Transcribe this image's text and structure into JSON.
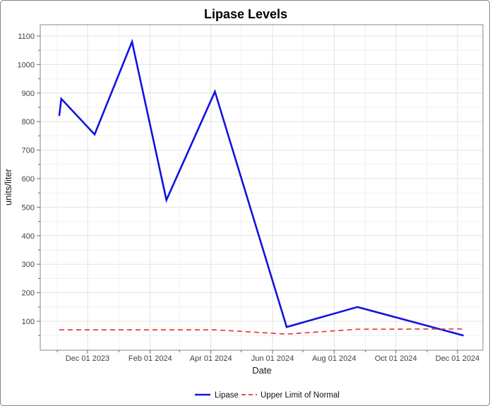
{
  "figure": {
    "background_color": "#ffffff",
    "border_color": "#858585",
    "panel_border_color": "#9b9b9b",
    "grid_major_color": "#e2e2e2",
    "grid_minor_color": "#f0f0f0"
  },
  "chart_data": {
    "type": "line",
    "title": "Lipase Levels",
    "xlabel": "Date",
    "ylabel": "units/liter",
    "grid": true,
    "legend_position": "bottom-center",
    "x_axis": {
      "tick_labels": [
        "Dec 01 2023",
        "Feb 01 2024",
        "Apr 01 2024",
        "Jun 01 2024",
        "Aug 01 2024",
        "Oct 01 2024",
        "Dec 01 2024"
      ],
      "tick_dates": [
        "2023-12-01",
        "2024-02-01",
        "2024-04-01",
        "2024-06-01",
        "2024-08-01",
        "2024-10-01",
        "2024-12-01"
      ],
      "range_dates": [
        "2023-10-15",
        "2024-12-26"
      ],
      "minor_gridlines": "monthly"
    },
    "y_axis": {
      "ticks": [
        100,
        200,
        300,
        400,
        500,
        600,
        700,
        800,
        900,
        1000,
        1100
      ],
      "minor_step": 50,
      "range": [
        0,
        1140
      ]
    },
    "series": [
      {
        "name": "Lipase",
        "color": "#1212e0",
        "style": "solid",
        "points": [
          {
            "date": "2023-11-03",
            "value": 820
          },
          {
            "date": "2023-11-05",
            "value": 880
          },
          {
            "date": "2023-12-08",
            "value": 755
          },
          {
            "date": "2024-01-14",
            "value": 1080
          },
          {
            "date": "2024-02-17",
            "value": 525
          },
          {
            "date": "2024-04-05",
            "value": 905
          },
          {
            "date": "2024-06-15",
            "value": 80
          },
          {
            "date": "2024-08-24",
            "value": 150
          },
          {
            "date": "2024-12-07",
            "value": 50
          }
        ]
      },
      {
        "name": "Upper Limit of Normal",
        "color": "#e63b3b",
        "style": "dashed",
        "points": [
          {
            "date": "2023-11-03",
            "value": 70
          },
          {
            "date": "2024-04-05",
            "value": 70
          },
          {
            "date": "2024-06-15",
            "value": 55
          },
          {
            "date": "2024-08-24",
            "value": 72
          },
          {
            "date": "2024-12-07",
            "value": 73
          }
        ]
      }
    ]
  }
}
